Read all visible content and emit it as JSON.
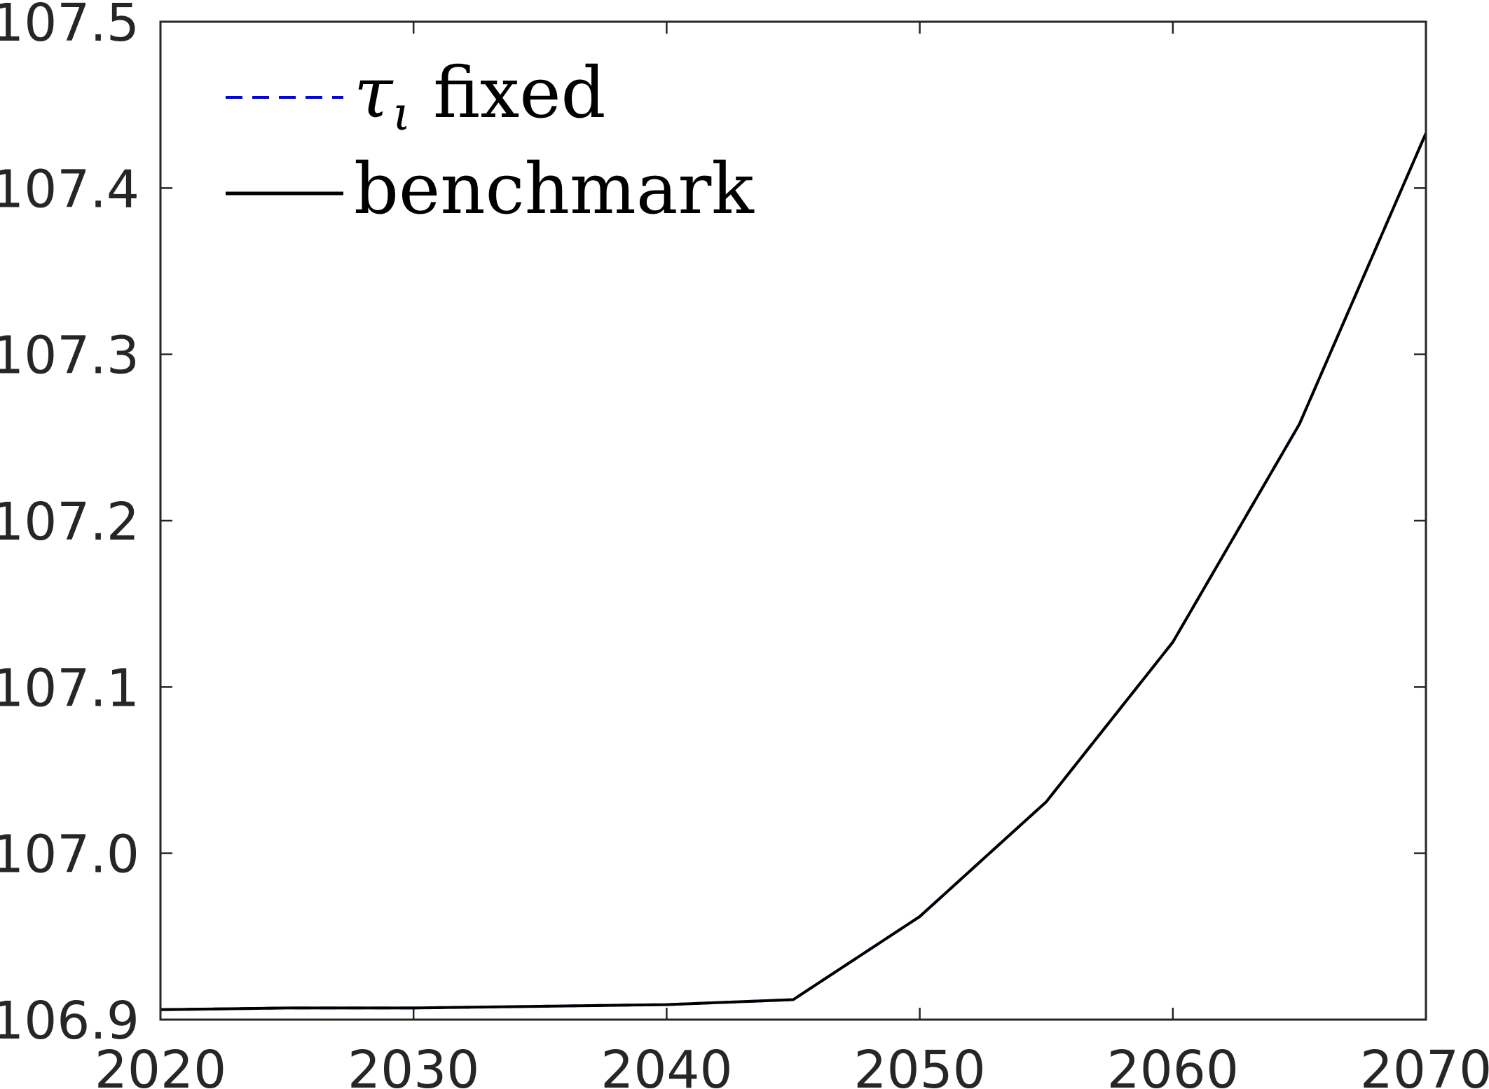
{
  "chart_data": {
    "type": "line",
    "xlim": [
      2020,
      2070
    ],
    "ylim": [
      106.9,
      107.5
    ],
    "x_ticks": [
      2020,
      2030,
      2040,
      2050,
      2060,
      2070
    ],
    "y_ticks": [
      106.9,
      107.0,
      107.1,
      107.2,
      107.3,
      107.4,
      107.5
    ],
    "x_tick_labels": [
      "2020",
      "2030",
      "2040",
      "2050",
      "2060",
      "2070"
    ],
    "y_tick_labels": [
      "106.9",
      "107.0",
      "107.1",
      "107.2",
      "107.3",
      "107.4",
      "107.5"
    ],
    "grid": false,
    "legend_position": "top-left",
    "x": [
      2020,
      2025,
      2030,
      2035,
      2040,
      2045,
      2050,
      2055,
      2060,
      2065,
      2070
    ],
    "series": [
      {
        "name": "τ_ι fixed",
        "name_symbol": "τ",
        "name_subscript": "ι",
        "name_text": "fixed",
        "color": "#0000ff",
        "style": "dashed",
        "values": [
          106.906,
          106.907,
          106.907,
          106.908,
          106.909,
          106.912,
          106.962,
          107.031,
          107.127,
          107.258,
          107.433
        ]
      },
      {
        "name": "benchmark",
        "color": "#000000",
        "style": "solid",
        "values": [
          106.906,
          106.907,
          106.907,
          106.908,
          106.909,
          106.912,
          106.962,
          107.031,
          107.127,
          107.258,
          107.433
        ]
      }
    ]
  }
}
